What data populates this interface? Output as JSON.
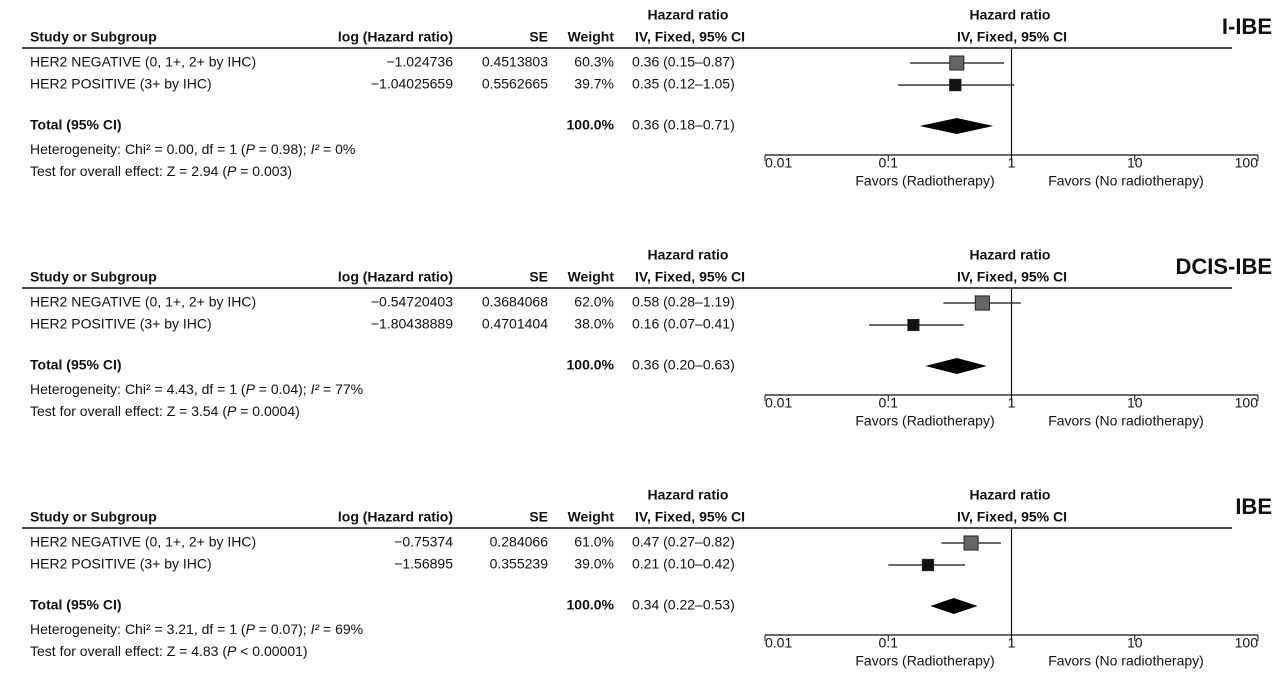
{
  "chart_data": [
    {
      "type": "forest",
      "title": "I-IBE",
      "columns": [
        "Study or Subgroup",
        "log (Hazard ratio)",
        "SE",
        "Weight"
      ],
      "ci_header": [
        "Hazard ratio",
        "IV, Fixed, 95% CI"
      ],
      "plot_header": [
        "Hazard ratio",
        "IV, Fixed, 95% CI"
      ],
      "categories": [
        "HER2 NEGATIVE (0, 1+, 2+ by IHC)",
        "HER2 POSITIVE (3+ by IHC)"
      ],
      "log_hr": [
        "−1.024736",
        "−1.04025659"
      ],
      "se": [
        "0.4513803",
        "0.5562665"
      ],
      "weights": [
        60.3,
        39.7
      ],
      "weight_labels": [
        "60.3%",
        "39.7%"
      ],
      "values": [
        0.36,
        0.35
      ],
      "lower": [
        0.15,
        0.12
      ],
      "upper": [
        0.87,
        1.05
      ],
      "value_labels": [
        "0.36 (0.15–0.87)",
        "0.35 (0.12–1.05)"
      ],
      "total": {
        "label": "Total (95% CI)",
        "weight": "100.0%",
        "value": 0.36,
        "lower": 0.18,
        "upper": 0.71,
        "value_label": "0.36 (0.18–0.71)"
      },
      "heterogeneity": [
        "Heterogeneity: Chi² = 0.00, df = 1 (",
        "P",
        " = 0.98); ",
        "I²",
        " = 0%"
      ],
      "overall_effect": [
        "Test for overall effect: Z = 2.94 (",
        "P",
        " = 0.003)"
      ],
      "xscale": "log",
      "xlim": [
        0.01,
        100
      ],
      "xticks": [
        0.01,
        0.1,
        1,
        10,
        100
      ],
      "xlabels": [
        "Favors (Radiotherapy)",
        "Favors (No radiotherapy)"
      ],
      "colors": [
        "#666666",
        "#111111"
      ],
      "diamond_color": "#000000"
    },
    {
      "type": "forest",
      "title": "DCIS-IBE",
      "columns": [
        "Study or Subgroup",
        "log (Hazard ratio)",
        "SE",
        "Weight"
      ],
      "ci_header": [
        "Hazard ratio",
        "IV, Fixed, 95% CI"
      ],
      "plot_header": [
        "Hazard ratio",
        "IV, Fixed, 95% CI"
      ],
      "categories": [
        "HER2 NEGATIVE (0, 1+, 2+ by IHC)",
        "HER2 POSITIVE (3+ by IHC)"
      ],
      "log_hr": [
        "−0.54720403",
        "−1.80438889"
      ],
      "se": [
        "0.3684068",
        "0.4701404"
      ],
      "weights": [
        62.0,
        38.0
      ],
      "weight_labels": [
        "62.0%",
        "38.0%"
      ],
      "values": [
        0.58,
        0.16
      ],
      "lower": [
        0.28,
        0.07
      ],
      "upper": [
        1.19,
        0.41
      ],
      "value_labels": [
        "0.58 (0.28–1.19)",
        "0.16 (0.07–0.41)"
      ],
      "total": {
        "label": "Total (95% CI)",
        "weight": "100.0%",
        "value": 0.36,
        "lower": 0.2,
        "upper": 0.63,
        "value_label": "0.36 (0.20–0.63)"
      },
      "heterogeneity": [
        "Heterogeneity: Chi² = 4.43, df = 1 (",
        "P",
        " = 0.04); ",
        "I²",
        " = 77%"
      ],
      "overall_effect": [
        "Test for overall effect: Z = 3.54 (",
        "P",
        " = 0.0004)"
      ],
      "xscale": "log",
      "xlim": [
        0.01,
        100
      ],
      "xticks": [
        0.01,
        0.1,
        1,
        10,
        100
      ],
      "xlabels": [
        "Favors (Radiotherapy)",
        "Favors (No radiotherapy)"
      ],
      "colors": [
        "#666666",
        "#111111"
      ],
      "diamond_color": "#000000"
    },
    {
      "type": "forest",
      "title": "IBE",
      "columns": [
        "Study or Subgroup",
        "log (Hazard ratio)",
        "SE",
        "Weight"
      ],
      "ci_header": [
        "Hazard ratio",
        "IV, Fixed, 95% CI"
      ],
      "plot_header": [
        "Hazard ratio",
        "IV, Fixed, 95% CI"
      ],
      "categories": [
        "HER2 NEGATIVE (0, 1+, 2+ by IHC)",
        "HER2 POSITIVE (3+ by IHC)"
      ],
      "log_hr": [
        "−0.75374",
        "−1.56895"
      ],
      "se": [
        "0.284066",
        "0.355239"
      ],
      "weights": [
        61.0,
        39.0
      ],
      "weight_labels": [
        "61.0%",
        "39.0%"
      ],
      "values": [
        0.47,
        0.21
      ],
      "lower": [
        0.27,
        0.1
      ],
      "upper": [
        0.82,
        0.42
      ],
      "value_labels": [
        "0.47 (0.27–0.82)",
        "0.21 (0.10–0.42)"
      ],
      "total": {
        "label": "Total (95% CI)",
        "weight": "100.0%",
        "value": 0.34,
        "lower": 0.22,
        "upper": 0.53,
        "value_label": "0.34 (0.22–0.53)"
      },
      "heterogeneity": [
        "Heterogeneity: Chi² = 3.21, df = 1 (",
        "P",
        " = 0.07); ",
        "I²",
        " = 69%"
      ],
      "overall_effect": [
        "Test for overall effect: Z = 4.83 (",
        "P",
        " < 0.00001)"
      ],
      "xscale": "log",
      "xlim": [
        0.01,
        100
      ],
      "xticks": [
        0.01,
        0.1,
        1,
        10,
        100
      ],
      "xlabels": [
        "Favors (Radiotherapy)",
        "Favors (No radiotherapy)"
      ],
      "colors": [
        "#666666",
        "#111111"
      ],
      "diamond_color": "#000000"
    }
  ]
}
